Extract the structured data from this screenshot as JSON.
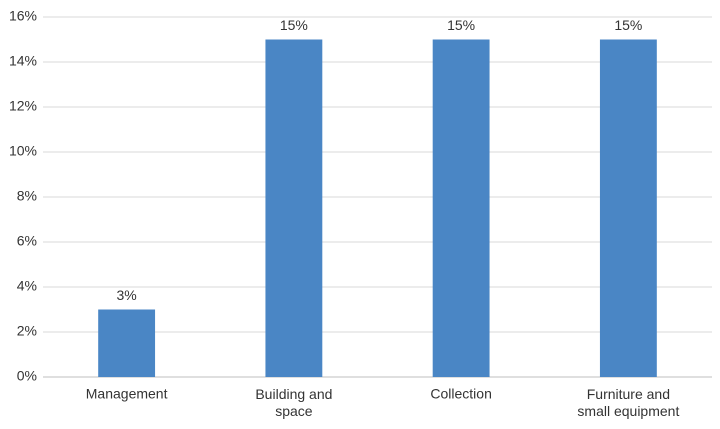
{
  "chart_data": {
    "type": "bar",
    "categories": [
      "Management",
      "Building and space",
      "Collection",
      "Furniture and small equipment"
    ],
    "values": [
      3,
      15,
      15,
      15
    ],
    "value_labels": [
      "3%",
      "15%",
      "15%",
      "15%"
    ],
    "color": "#4a86c5",
    "ylim": [
      0,
      16
    ],
    "yticks": [
      {
        "value": 0,
        "label": "0%"
      },
      {
        "value": 2,
        "label": "2%"
      },
      {
        "value": 4,
        "label": "4%"
      },
      {
        "value": 6,
        "label": "6%"
      },
      {
        "value": 8,
        "label": "8%"
      },
      {
        "value": 10,
        "label": "10%"
      },
      {
        "value": 12,
        "label": "12%"
      },
      {
        "value": 14,
        "label": "14%"
      },
      {
        "value": 16,
        "label": "16%"
      }
    ],
    "grid": true
  }
}
